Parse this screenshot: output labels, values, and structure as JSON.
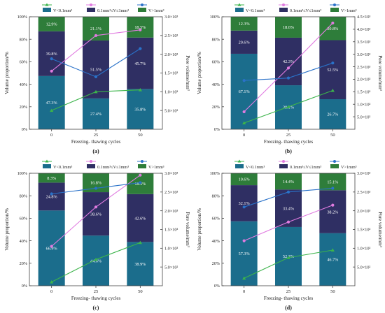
{
  "figure": {
    "panels": [
      {
        "panel_label": "(a)",
        "chart_data": {
          "type": "bar",
          "stacked": true,
          "categories": [
            "0",
            "25",
            "50"
          ],
          "xlabel": "Freezing- thawing cycles",
          "ylabel": "Volume proportion/%",
          "ylim": [
            0,
            100
          ],
          "yticks": [
            "0%",
            "20%",
            "40%",
            "60%",
            "80%",
            "100%"
          ],
          "y2label": "Pore volume/mm³",
          "y2lim": [
            0,
            3000
          ],
          "y2ticks": [
            {
              "v": 500,
              "label": "5.0×10²"
            },
            {
              "v": 1000,
              "label": "1.0×10³"
            },
            {
              "v": 1500,
              "label": "1.5×10³"
            },
            {
              "v": 2000,
              "label": "2.0×10³"
            },
            {
              "v": 2500,
              "label": "2.5×10³"
            },
            {
              "v": 3000,
              "label": "3.0×10³"
            }
          ],
          "legend": [
            "V<0.1mm³",
            "0.1mm³≤V≤1mm³",
            "V>1mm³"
          ],
          "legend_position": "top",
          "bar_series": [
            {
              "values": [
                47.3,
                27.4,
                35.8
              ],
              "labels": [
                "47.3%",
                "27.4%",
                "35.8%"
              ],
              "color": "#1b6d8c"
            },
            {
              "values": [
                39.8,
                51.5,
                45.7
              ],
              "labels": [
                "39.8%",
                "51.5%",
                "45.7%"
              ],
              "color": "#2f2f63"
            },
            {
              "values": [
                12.9,
                21.1,
                18.5
              ],
              "labels": [
                "12.9%",
                "21.1%",
                "18.5%"
              ],
              "color": "#2e7d3a"
            }
          ],
          "line_series": [
            {
              "values": [
                500,
                1000,
                1050
              ],
              "color": "#3cb44b",
              "marker": "triangle"
            },
            {
              "values": [
                1550,
                2500,
                2650
              ],
              "color": "#e07be0",
              "marker": "circle"
            },
            {
              "values": [
                1880,
                1400,
                2150
              ],
              "color": "#2a72c9",
              "marker": "circle"
            }
          ]
        }
      },
      {
        "panel_label": "(b)",
        "chart_data": {
          "type": "bar",
          "stacked": true,
          "categories": [
            "0",
            "25",
            "50"
          ],
          "xlabel": "Freezing- thawing cycles",
          "ylabel": "Volume proportion/%",
          "ylim": [
            0,
            100
          ],
          "yticks": [
            "0%",
            "20%",
            "40%",
            "60%",
            "80%",
            "100%"
          ],
          "y2label": "Pore volume/mm³",
          "y2lim": [
            0,
            4500
          ],
          "y2ticks": [
            {
              "v": 500,
              "label": "5.0×10²"
            },
            {
              "v": 1000,
              "label": "1.0×10³"
            },
            {
              "v": 1500,
              "label": "1.5×10³"
            },
            {
              "v": 2000,
              "label": "2.0×10³"
            },
            {
              "v": 2500,
              "label": "2.5×10³"
            },
            {
              "v": 3000,
              "label": "3.0×10³"
            },
            {
              "v": 3500,
              "label": "3.5×10³"
            },
            {
              "v": 4000,
              "label": "4.0×10³"
            },
            {
              "v": 4500,
              "label": "4.5×10³"
            }
          ],
          "legend": [
            "V<0.1mm³",
            "0.1mm³≤V≤1mm³",
            "V>1mm³"
          ],
          "legend_position": "top",
          "bar_series": [
            {
              "values": [
                67.1,
                39.1,
                26.7
              ],
              "labels": [
                "67.1%",
                "39.1%",
                "26.7%"
              ],
              "color": "#1b6d8c"
            },
            {
              "values": [
                20.6,
                42.3,
                52.5
              ],
              "labels": [
                "20.6%",
                "42.3%",
                "52.5%"
              ],
              "color": "#2f2f63"
            },
            {
              "values": [
                12.3,
                18.6,
                20.8
              ],
              "labels": [
                "12.3%",
                "18.6%",
                "20.8%"
              ],
              "color": "#2e7d3a"
            }
          ],
          "line_series": [
            {
              "values": [
                250,
                900,
                1550
              ],
              "color": "#3cb44b",
              "marker": "triangle"
            },
            {
              "values": [
                700,
                2450,
                4250
              ],
              "color": "#e07be0",
              "marker": "circle"
            },
            {
              "values": [
                1950,
                2050,
                2650
              ],
              "color": "#2a72c9",
              "marker": "circle"
            }
          ]
        }
      },
      {
        "panel_label": "(c)",
        "chart_data": {
          "type": "bar",
          "stacked": true,
          "categories": [
            "0",
            "25",
            "50"
          ],
          "xlabel": "Freezing- thawing cycles",
          "ylabel": "Volume proportion/%",
          "ylim": [
            0,
            100
          ],
          "yticks": [
            "0%",
            "20%",
            "40%",
            "60%",
            "80%",
            "100%"
          ],
          "y2label": "Pore volume/mm³",
          "y2lim": [
            0,
            3000
          ],
          "y2ticks": [
            {
              "v": 500,
              "label": "5.0×10²"
            },
            {
              "v": 1000,
              "label": "1.0×10³"
            },
            {
              "v": 1500,
              "label": "1.5×10³"
            },
            {
              "v": 2000,
              "label": "2.0×10³"
            },
            {
              "v": 2500,
              "label": "2.5×10³"
            },
            {
              "v": 3000,
              "label": "3.0×10³"
            }
          ],
          "legend": [
            "V<0.1mm³",
            "0.1mm³≤V≤1mm³",
            "V>1mm³"
          ],
          "legend_position": "top",
          "bar_series": [
            {
              "values": [
                66.9,
                44.6,
                38.9
              ],
              "labels": [
                "66.9%",
                "44.6%",
                "38.9%"
              ],
              "color": "#1b6d8c"
            },
            {
              "values": [
                24.8,
                38.6,
                42.6
              ],
              "labels": [
                "24.8%",
                "38.6%",
                "42.6%"
              ],
              "color": "#2f2f63"
            },
            {
              "values": [
                8.3,
                16.8,
                18.5
              ],
              "labels": [
                "8.3%",
                "16.8%",
                "18.5%"
              ],
              "color": "#2e7d3a"
            }
          ],
          "line_series": [
            {
              "values": [
                100,
                700,
                1150
              ],
              "color": "#3cb44b",
              "marker": "triangle"
            },
            {
              "values": [
                1050,
                2100,
                2950
              ],
              "color": "#e07be0",
              "marker": "circle"
            },
            {
              "values": [
                2450,
                2600,
                2750
              ],
              "color": "#2a72c9",
              "marker": "circle"
            }
          ]
        }
      },
      {
        "panel_label": "(d)",
        "chart_data": {
          "type": "bar",
          "stacked": true,
          "categories": [
            "0",
            "25",
            "50"
          ],
          "xlabel": "Freezing- thawing cycles",
          "ylabel": "Volume proportion/%",
          "ylim": [
            0,
            100
          ],
          "yticks": [
            "0%",
            "20%",
            "40%",
            "60%",
            "80%",
            "100%"
          ],
          "y2label": "Pore volume/mm³",
          "y2lim": [
            0,
            3000
          ],
          "y2ticks": [
            {
              "v": 500,
              "label": "5.0×10²"
            },
            {
              "v": 1000,
              "label": "1.0×10³"
            },
            {
              "v": 1500,
              "label": "1.5×10³"
            },
            {
              "v": 2000,
              "label": "2.0×10³"
            },
            {
              "v": 2500,
              "label": "2.5×10³"
            },
            {
              "v": 3000,
              "label": "3.0×10³"
            }
          ],
          "legend": [
            "V<0.1mm³",
            "0.1mm³≤V≤1mm³",
            "V>1mm³"
          ],
          "legend_position": "top",
          "bar_series": [
            {
              "values": [
                57.3,
                52.2,
                46.7
              ],
              "labels": [
                "57.3%",
                "52.2%",
                "46.7%"
              ],
              "color": "#1b6d8c"
            },
            {
              "values": [
                32.1,
                33.4,
                38.2
              ],
              "labels": [
                "32.1%",
                "33.4%",
                "38.2%"
              ],
              "color": "#2f2f63"
            },
            {
              "values": [
                10.6,
                14.4,
                15.1
              ],
              "labels": [
                "10.6%",
                "14.4%",
                "15.1%"
              ],
              "color": "#2e7d3a"
            }
          ],
          "line_series": [
            {
              "values": [
                200,
                750,
                950
              ],
              "color": "#3cb44b",
              "marker": "triangle"
            },
            {
              "values": [
                1200,
                1700,
                2150
              ],
              "color": "#e07be0",
              "marker": "circle"
            },
            {
              "values": [
                2100,
                2500,
                2600
              ],
              "color": "#2a72c9",
              "marker": "circle"
            }
          ]
        }
      }
    ]
  }
}
